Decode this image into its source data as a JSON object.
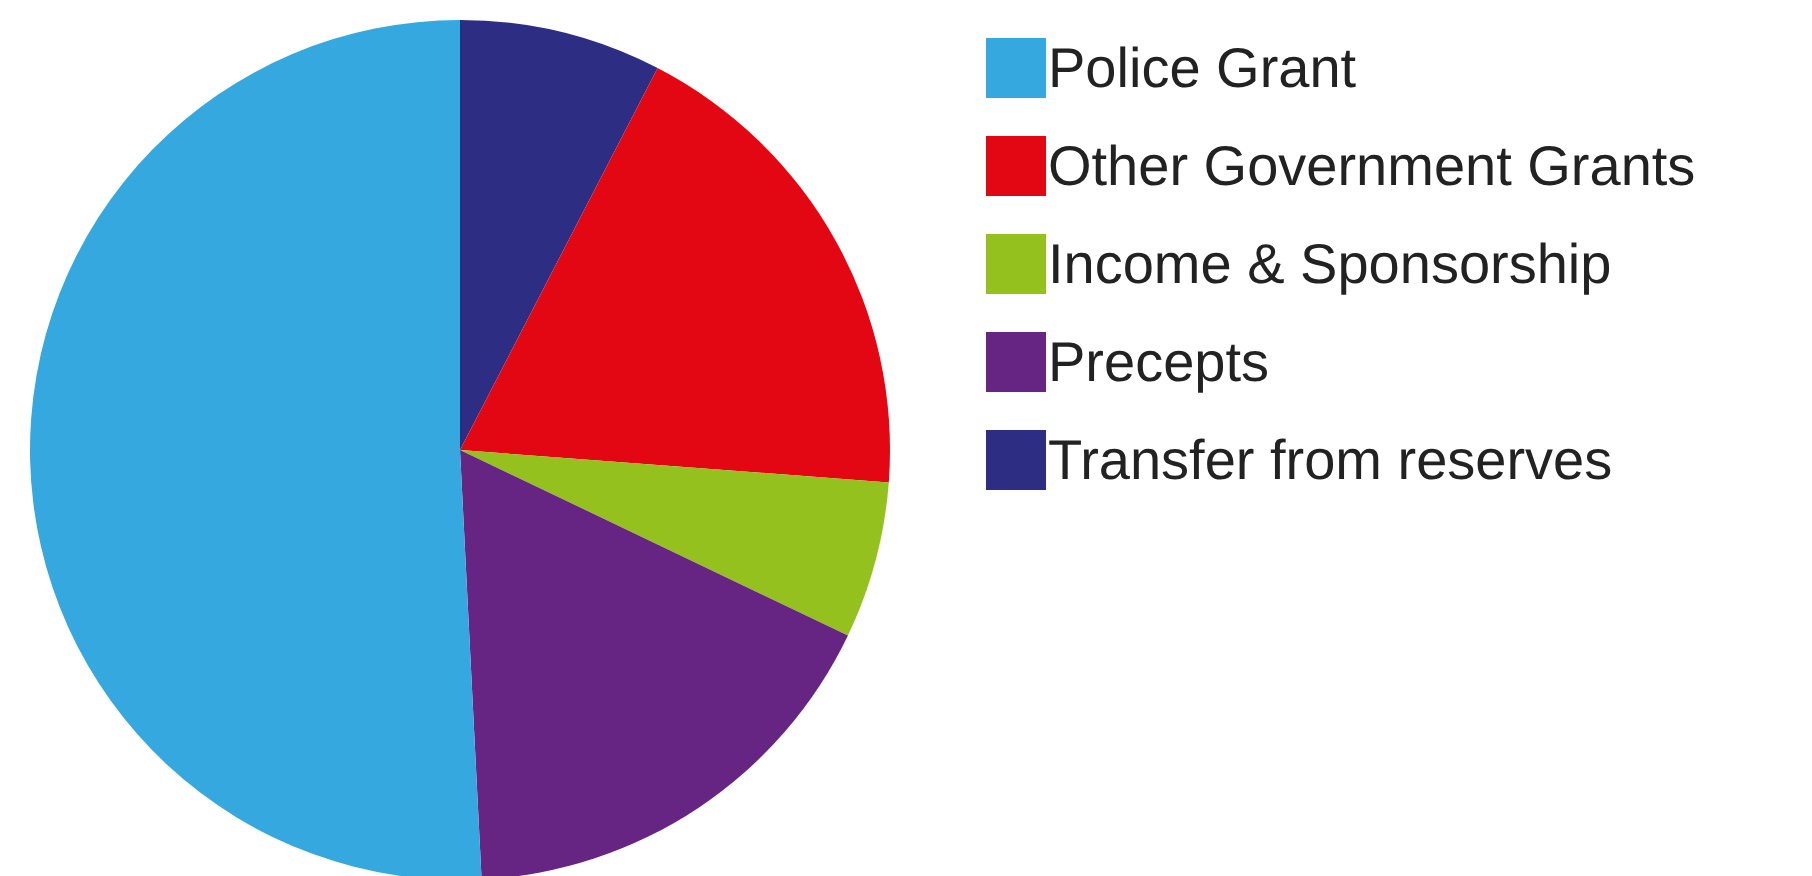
{
  "chart_data": {
    "type": "pie",
    "categories": [
      "Police Grant",
      "Other Government Grants",
      "Income & Sponsorship",
      "Precepts",
      "Transfer from reserves"
    ],
    "values": [
      50.8,
      18.6,
      5.9,
      17.1,
      7.6
    ],
    "colors": [
      "#35a8e0",
      "#e30613",
      "#95c11f",
      "#662483",
      "#2d2e83"
    ],
    "legend": "right"
  }
}
